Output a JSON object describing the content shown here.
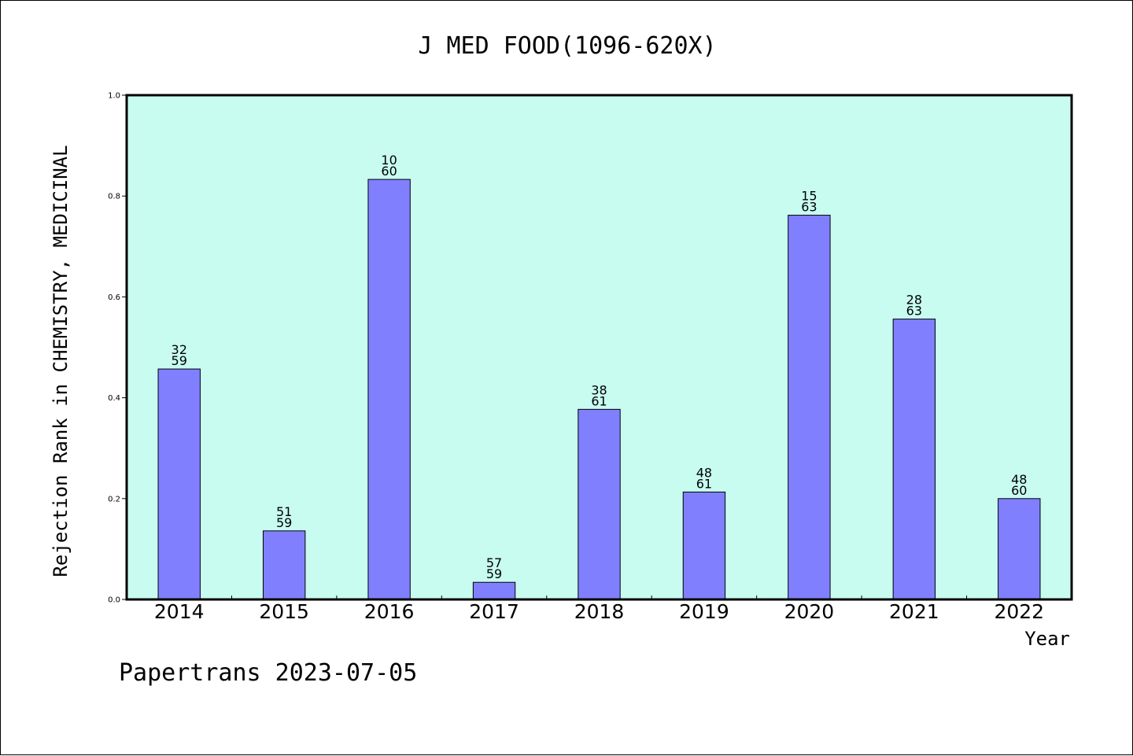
{
  "colors": {
    "plot_background": "#c8fcf0",
    "bar_fill": "#8080ff",
    "bar_stroke": "#000000",
    "axis": "#000000",
    "page_background": "#ffffff"
  },
  "footer": {
    "text": "Papertrans 2023-07-05"
  },
  "chart_data": {
    "type": "bar",
    "title": "J MED FOOD(1096-620X)",
    "xlabel": "Year",
    "ylabel": "Rejection Rank in CHEMISTRY, MEDICINAL",
    "ylim": [
      0,
      1.0
    ],
    "yticks": [
      "0.0",
      "0.2",
      "0.4",
      "0.6",
      "0.8",
      "1.0"
    ],
    "grid": false,
    "categories": [
      "2014",
      "2015",
      "2016",
      "2017",
      "2018",
      "2019",
      "2020",
      "2021",
      "2022"
    ],
    "values": [
      0.457,
      0.136,
      0.833,
      0.034,
      0.377,
      0.213,
      0.762,
      0.556,
      0.2
    ],
    "bar_labels": [
      [
        "32",
        "59"
      ],
      [
        "51",
        "59"
      ],
      [
        "10",
        "60"
      ],
      [
        "57",
        "59"
      ],
      [
        "38",
        "61"
      ],
      [
        "48",
        "61"
      ],
      [
        "15",
        "63"
      ],
      [
        "28",
        "63"
      ],
      [
        "48",
        "60"
      ]
    ]
  }
}
